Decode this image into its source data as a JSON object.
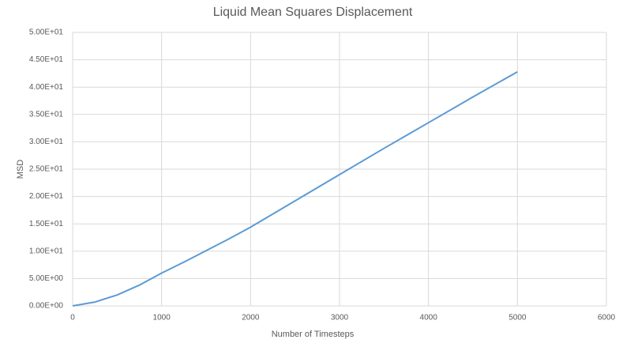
{
  "chart_data": {
    "type": "line",
    "title": "Liquid Mean Squares Displacement",
    "x_label": "Number of Timesteps",
    "y_label": "MSD",
    "x": [
      0,
      250,
      500,
      750,
      1000,
      1250,
      1500,
      1750,
      2000,
      2500,
      3000,
      3500,
      4000,
      4500,
      5000
    ],
    "values": [
      0,
      0.7,
      2.0,
      3.8,
      6.0,
      8.0,
      10.1,
      12.2,
      14.4,
      19.2,
      24.0,
      28.8,
      33.5,
      38.2,
      42.8
    ],
    "color": "#5b9bd5",
    "xlim": [
      0,
      6000
    ],
    "xticks": [
      0,
      1000,
      2000,
      3000,
      4000,
      5000,
      6000
    ],
    "ylim": [
      0,
      50
    ],
    "yticks": [
      {
        "value": 0,
        "label": "0.00E+00"
      },
      {
        "value": 5,
        "label": "5.00E+00"
      },
      {
        "value": 10,
        "label": "1.00E+01"
      },
      {
        "value": 15,
        "label": "1.50E+01"
      },
      {
        "value": 20,
        "label": "2.00E+01"
      },
      {
        "value": 25,
        "label": "2.50E+01"
      },
      {
        "value": 30,
        "label": "3.00E+01"
      },
      {
        "value": 35,
        "label": "3.50E+01"
      },
      {
        "value": 40,
        "label": "4.00E+01"
      },
      {
        "value": 45,
        "label": "4.50E+01"
      },
      {
        "value": 50,
        "label": "5.00E+01"
      }
    ],
    "grid": true
  }
}
